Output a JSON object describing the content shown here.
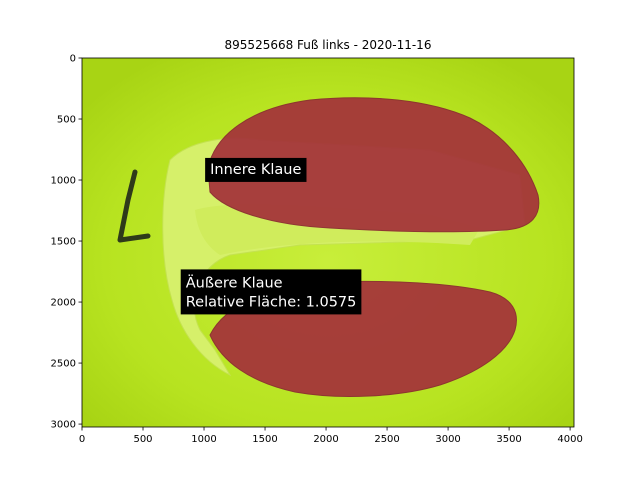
{
  "chart_data": {
    "type": "image",
    "title": "895525668 Fuß links - 2020-11-16",
    "image_width": 4032,
    "image_height": 3024,
    "xlim": [
      0,
      4032
    ],
    "ylim": [
      3024,
      0
    ],
    "xticks": [
      0,
      500,
      1000,
      1500,
      2000,
      2500,
      3000,
      3500,
      4000
    ],
    "yticks": [
      0,
      500,
      1000,
      1500,
      2000,
      2500,
      3000
    ],
    "grid": false,
    "annotations": [
      {
        "lines": [
          "Innere Klaue"
        ],
        "x": 1050,
        "y": 950
      },
      {
        "lines": [
          "Äußere Klaue",
          "Relative Fläche: 1.0575"
        ],
        "x": 850,
        "y": 1880
      }
    ],
    "colors": {
      "background": "#b5e61d",
      "overlay": "#a4323a",
      "annotation_box": "#000000",
      "annotation_text": "#ffffff"
    }
  }
}
